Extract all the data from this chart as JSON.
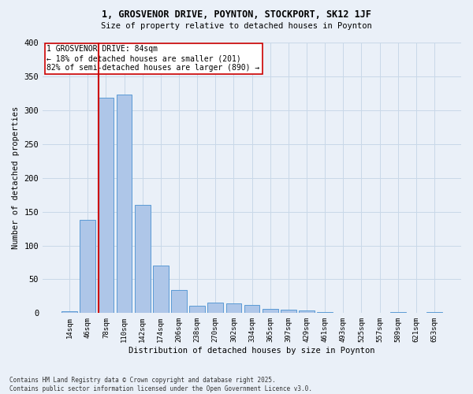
{
  "title": "1, GROSVENOR DRIVE, POYNTON, STOCKPORT, SK12 1JF",
  "subtitle": "Size of property relative to detached houses in Poynton",
  "xlabel": "Distribution of detached houses by size in Poynton",
  "ylabel": "Number of detached properties",
  "footer_line1": "Contains HM Land Registry data © Crown copyright and database right 2025.",
  "footer_line2": "Contains public sector information licensed under the Open Government Licence v3.0.",
  "categories": [
    "14sqm",
    "46sqm",
    "78sqm",
    "110sqm",
    "142sqm",
    "174sqm",
    "206sqm",
    "238sqm",
    "270sqm",
    "302sqm",
    "334sqm",
    "365sqm",
    "397sqm",
    "429sqm",
    "461sqm",
    "493sqm",
    "525sqm",
    "557sqm",
    "589sqm",
    "621sqm",
    "653sqm"
  ],
  "values": [
    3,
    138,
    318,
    323,
    160,
    70,
    34,
    11,
    15,
    14,
    12,
    6,
    5,
    4,
    1,
    0,
    0,
    0,
    1,
    0,
    1
  ],
  "bar_color": "#aec6e8",
  "bar_edge_color": "#5b9bd5",
  "grid_color": "#c8d8e8",
  "background_color": "#eaf0f8",
  "vline_bar_index": 2,
  "vline_color": "#cc0000",
  "annotation_text": "1 GROSVENOR DRIVE: 84sqm\n← 18% of detached houses are smaller (201)\n82% of semi-detached houses are larger (890) →",
  "annotation_box_color": "white",
  "annotation_box_edge": "#cc0000",
  "ylim": [
    0,
    400
  ],
  "yticks": [
    0,
    50,
    100,
    150,
    200,
    250,
    300,
    350,
    400
  ]
}
